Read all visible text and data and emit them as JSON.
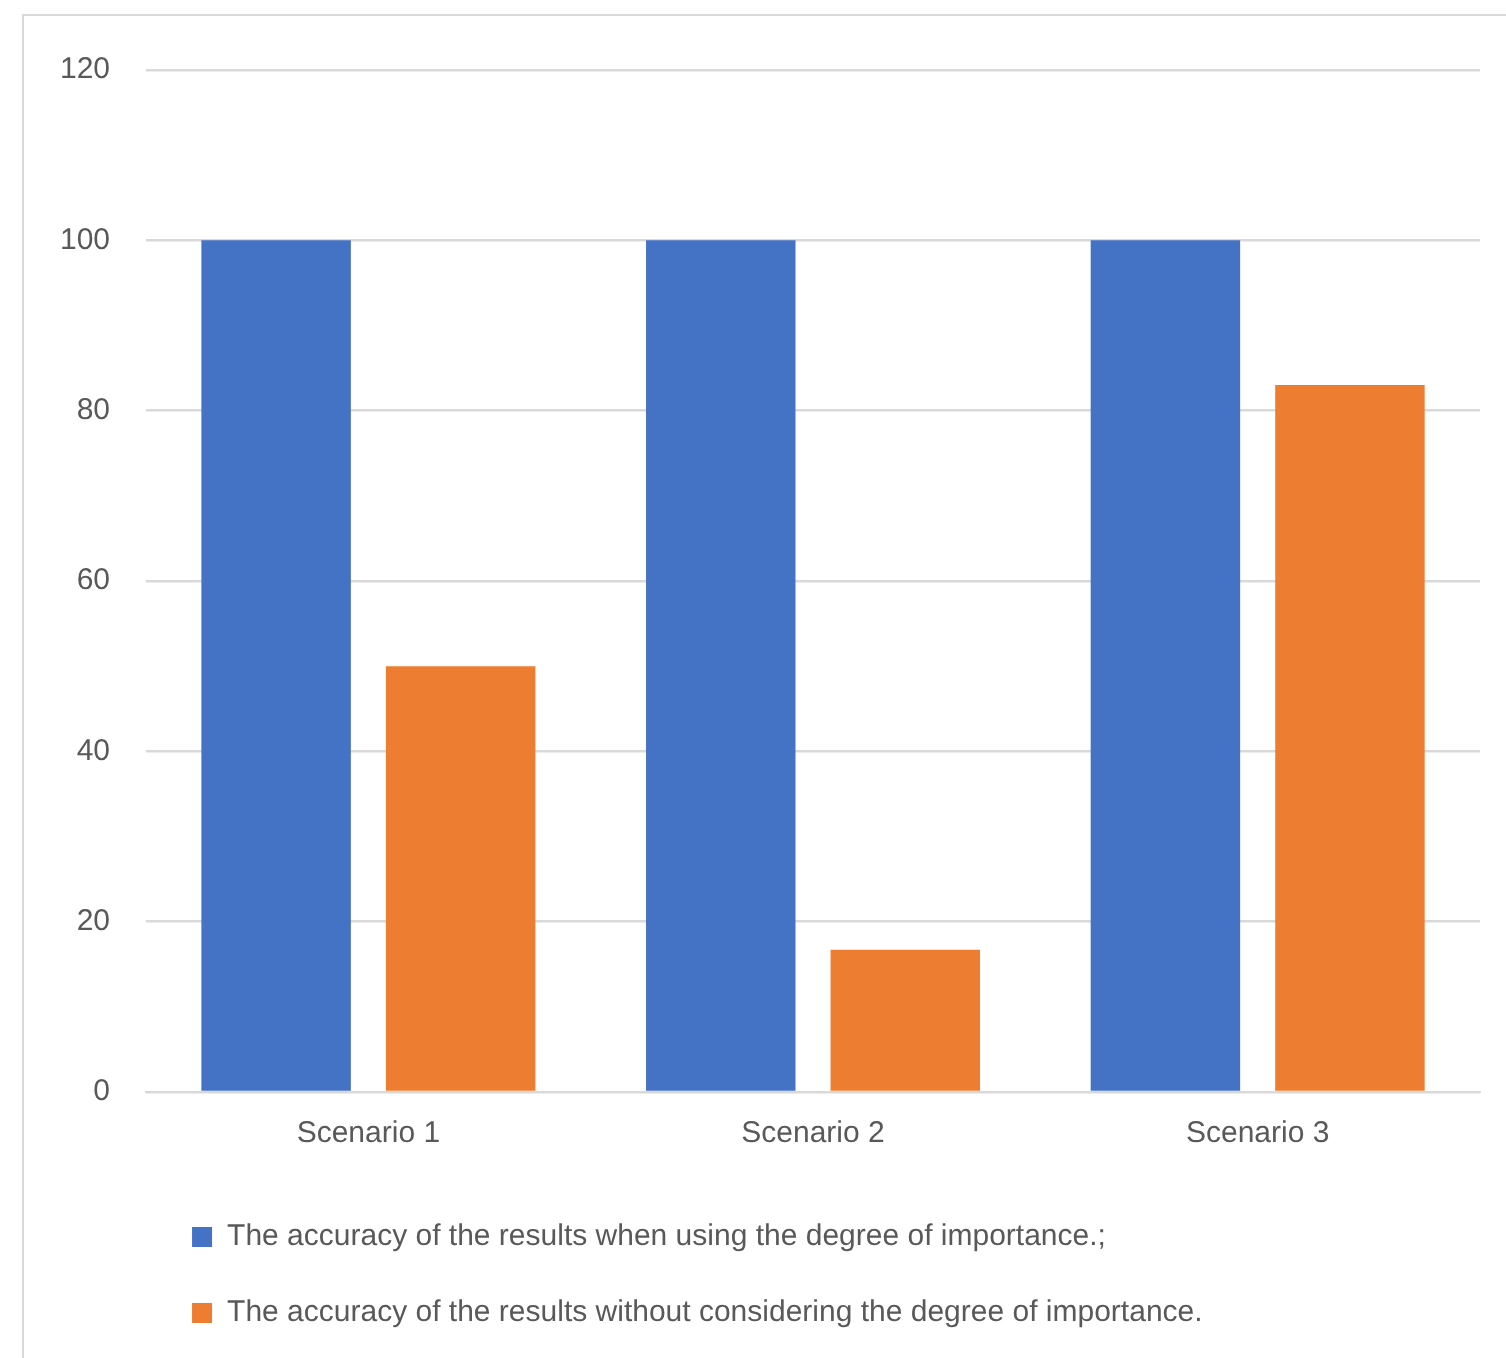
{
  "chart_data": {
    "type": "bar",
    "categories": [
      "Scenario 1",
      "Scenario 2",
      "Scenario 3"
    ],
    "series": [
      {
        "name": "The accuracy of the results when using the degree of importance.;",
        "color": "#4472c4",
        "values": [
          100,
          100,
          100
        ]
      },
      {
        "name": "The accuracy of the results without considering the degree of importance.",
        "color": "#ed7d31",
        "values": [
          50,
          16.7,
          83
        ]
      }
    ],
    "ylim": [
      0,
      120
    ],
    "yticks": [
      0,
      20,
      40,
      60,
      80,
      100,
      120
    ],
    "grid": "y",
    "legend": "bottom"
  }
}
